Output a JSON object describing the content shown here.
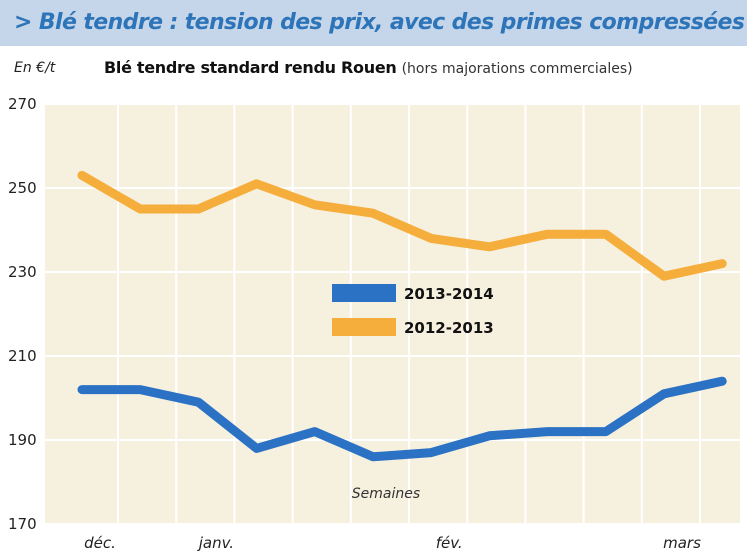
{
  "header": {
    "headline": "> Blé tendre : tension des prix, avec des primes compressées",
    "unit": "En €/t",
    "subtitle_main": "Blé tendre standard rendu Rouen",
    "subtitle_note": "(hors majorations commerciales)"
  },
  "colors": {
    "header_bg": "#c5d6ea",
    "headline": "#2e74b8",
    "plot_bg": "#f6f0df",
    "series_2013_2014": "#2b72c4",
    "series_2012_2013": "#f5ad3b"
  },
  "chart_data": {
    "type": "line",
    "xlabel": "Semaines",
    "ylabel": "En €/t",
    "ylim": [
      170,
      270
    ],
    "yticks": [
      170,
      190,
      210,
      230,
      250,
      270
    ],
    "grid": true,
    "legend_position": "center-left",
    "x_labels": [
      {
        "label": "déc.",
        "week": 0
      },
      {
        "label": "janv.",
        "week": 2
      },
      {
        "label": "fév.",
        "week": 6
      },
      {
        "label": "mars",
        "week": 10
      }
    ],
    "series": [
      {
        "name": "2013-2014",
        "color": "#2b72c4",
        "x": [
          0,
          1,
          2,
          3,
          4,
          5,
          6,
          7,
          8,
          9,
          10,
          11
        ],
        "values": [
          202,
          202,
          199,
          188,
          192,
          186,
          187,
          191,
          192,
          192,
          201,
          204
        ]
      },
      {
        "name": "2012-2013",
        "color": "#f5ad3b",
        "x": [
          0,
          1,
          2,
          3,
          4,
          5,
          6,
          7,
          8,
          9,
          10,
          11
        ],
        "values": [
          253,
          245,
          245,
          251,
          246,
          244,
          238,
          236,
          239,
          239,
          229,
          232
        ]
      }
    ]
  }
}
